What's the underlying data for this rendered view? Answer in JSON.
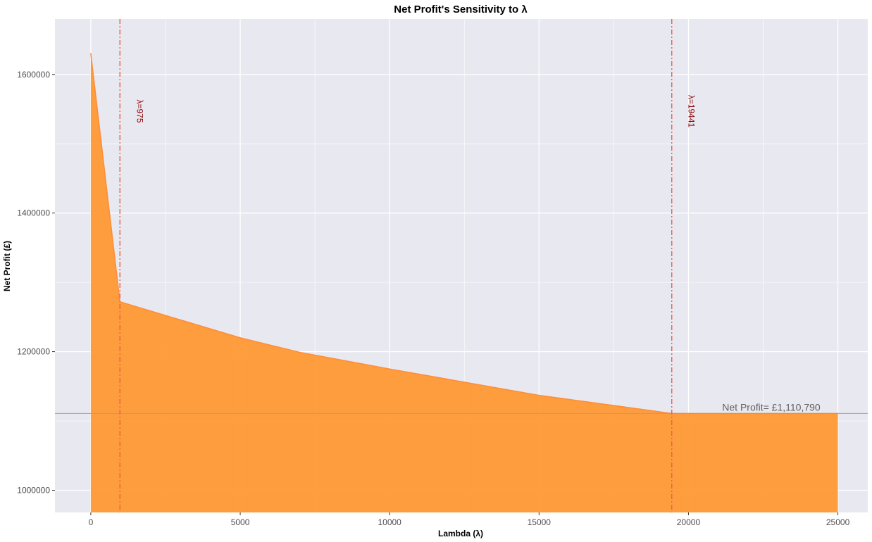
{
  "chart_data": {
    "type": "area",
    "title": "Net Profit's Sensitivity to λ",
    "xlabel": "Lambda (λ)",
    "ylabel": "Net Profit (£)",
    "xlim": [
      -1200,
      26000
    ],
    "ylim": [
      968000,
      1680000
    ],
    "xticks": [
      0,
      5000,
      10000,
      15000,
      20000,
      25000
    ],
    "yticks": [
      1000000,
      1200000,
      1400000,
      1600000
    ],
    "grid": true,
    "series": [
      {
        "x": [
          0,
          975,
          5000,
          7000,
          10000,
          15000,
          19441,
          25000
        ],
        "y": [
          1630000,
          1272000,
          1220000,
          1199000,
          1175000,
          1137000,
          1110790,
          1110790
        ],
        "fill_color": "#ff9933",
        "line_color": "#ff8c3a"
      }
    ],
    "vlines": [
      {
        "x": 975,
        "label": "λ=975",
        "color": "#e8614a"
      },
      {
        "x": 19441,
        "label": "λ=19441",
        "color": "#e8614a"
      }
    ],
    "hline": {
      "y": 1110790,
      "label": "Net Profit= £1,110,790",
      "color": "#9e9eb0"
    },
    "colors": {
      "panel_background": "#e8e8f0",
      "grid": "#ffffff",
      "label_dark_red": "#8b0000",
      "hline_label": "#606060"
    }
  }
}
